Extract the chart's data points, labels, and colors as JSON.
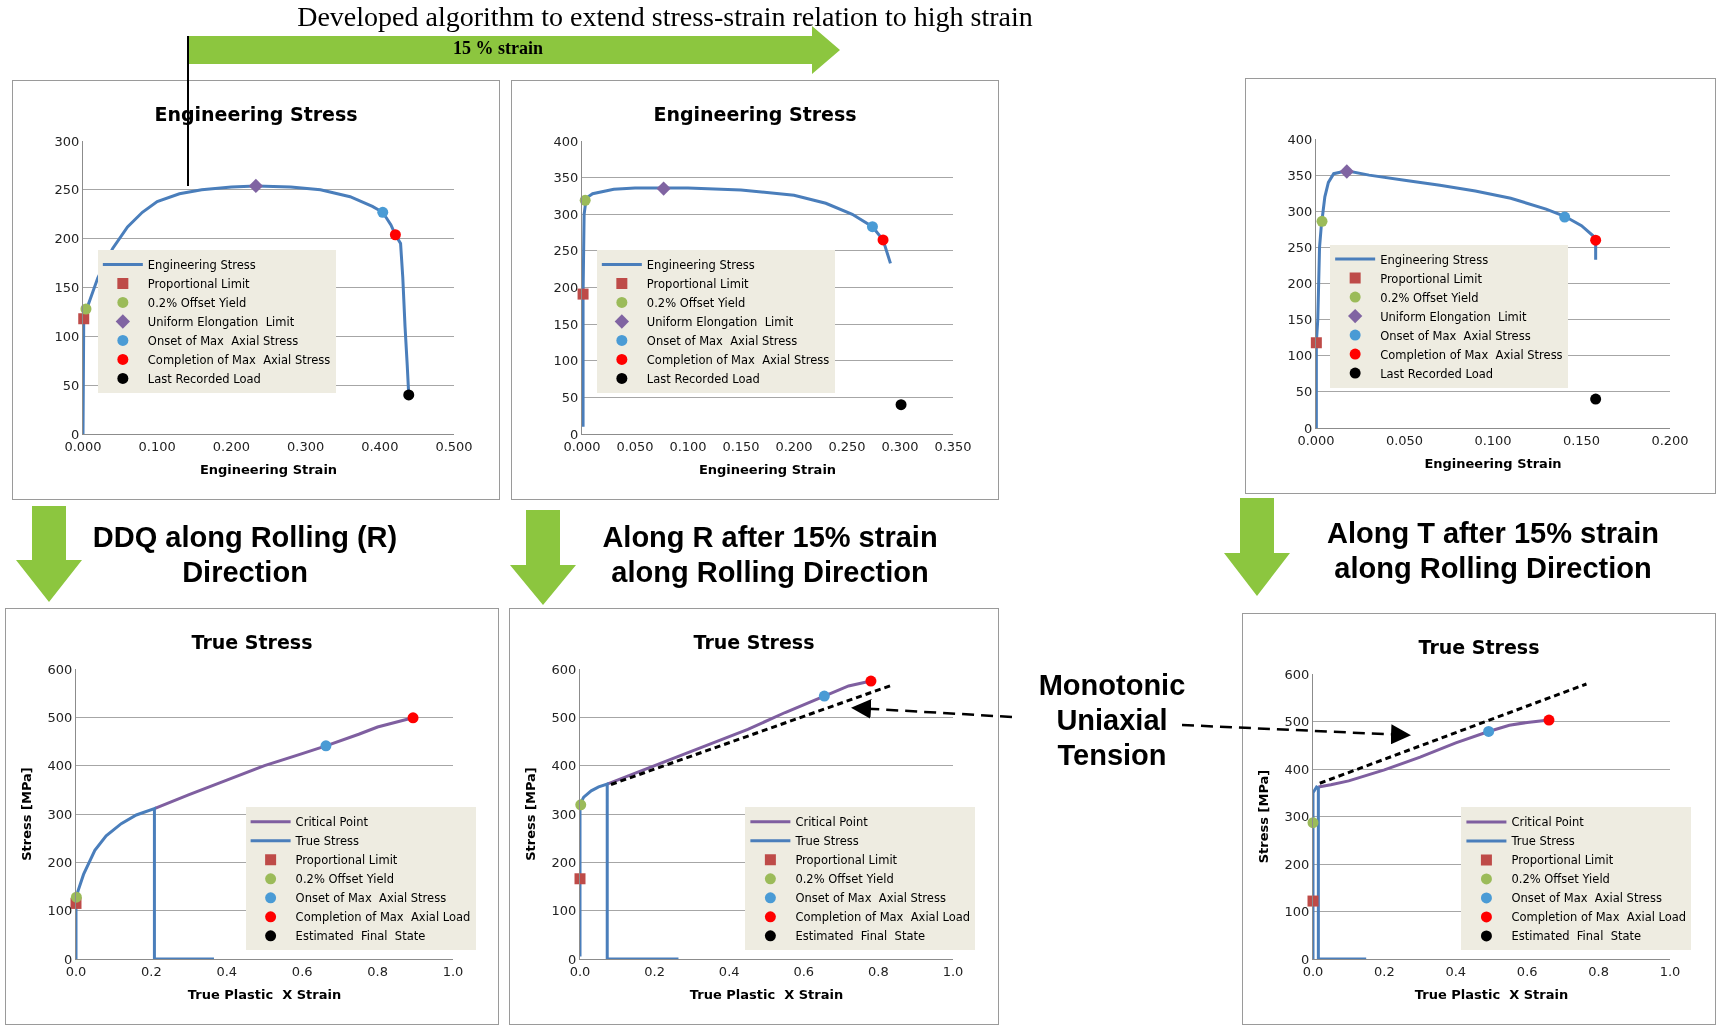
{
  "chart_data": [
    {
      "type": "line",
      "title": "Engineering Stress",
      "xlabel": "Engineering Strain",
      "grid": "y",
      "legend": "bottom",
      "annotations": [
        "Developed algorithm to extend stress-strain relation to high strain",
        "15 % strain",
        "DDQ along Rolling (R) Direction"
      ],
      "xlim": [
        0,
        0.5
      ],
      "xticks": [
        {
          "value": 0,
          "label": "0.000"
        },
        {
          "value": 0.1,
          "label": "0.100"
        },
        {
          "value": 0.2,
          "label": "0.200"
        },
        {
          "value": 0.3,
          "label": "0.300"
        },
        {
          "value": 0.4,
          "label": "0.400"
        },
        {
          "value": 0.5,
          "label": "0.500"
        }
      ],
      "ylim": [
        0,
        300
      ],
      "yticks": [
        0,
        50,
        100,
        150,
        200,
        250,
        300
      ],
      "series": [
        {
          "name": "Engineering Stress",
          "type": "line",
          "color": "#4a7ebb",
          "x": [
            0,
            0.001,
            0.005,
            0.02,
            0.04,
            0.06,
            0.08,
            0.1,
            0.13,
            0.16,
            0.2,
            0.233,
            0.28,
            0.32,
            0.36,
            0.39,
            0.404,
            0.415,
            0.421,
            0.428,
            0.431,
            0.434,
            0.437,
            0.439
          ],
          "values": [
            0,
            118,
            128,
            160,
            190,
            212,
            227,
            238,
            246,
            250,
            253,
            254,
            253,
            250,
            243,
            233,
            227,
            214,
            204,
            195,
            160,
            110,
            70,
            40
          ]
        },
        {
          "name": "Proportional Limit",
          "type": "scatter",
          "marker": "square",
          "color": "#be4b48",
          "x": [
            0.001
          ],
          "values": [
            118
          ]
        },
        {
          "name": "0.2% Offset Yield",
          "type": "scatter",
          "marker": "circle",
          "color": "#9bbb59",
          "x": [
            0.004
          ],
          "values": [
            128
          ]
        },
        {
          "name": "Uniform Elongation  Limit",
          "type": "scatter",
          "marker": "diamond",
          "color": "#8064a2",
          "x": [
            0.233
          ],
          "values": [
            254
          ]
        },
        {
          "name": "Onset of Max  Axial Stress",
          "type": "scatter",
          "marker": "circle",
          "color": "#4a9bd5",
          "x": [
            0.404
          ],
          "values": [
            227
          ]
        },
        {
          "name": "Completion of Max  Axial Stress",
          "type": "scatter",
          "marker": "circle",
          "color": "#ff0000",
          "x": [
            0.421
          ],
          "values": [
            204
          ]
        },
        {
          "name": "Last Recorded Load",
          "type": "scatter",
          "marker": "circle",
          "color": "#000000",
          "x": [
            0.439
          ],
          "values": [
            40
          ]
        }
      ]
    },
    {
      "type": "line",
      "title": "Engineering Stress",
      "xlabel": "Engineering Strain",
      "grid": "y",
      "legend": "bottom",
      "annotations": [
        "Along R after 15% strain along Rolling Direction"
      ],
      "xlim": [
        0,
        0.35
      ],
      "xticks": [
        {
          "value": 0,
          "label": "0.000"
        },
        {
          "value": 0.05,
          "label": "0.050"
        },
        {
          "value": 0.1,
          "label": "0.100"
        },
        {
          "value": 0.15,
          "label": "0.150"
        },
        {
          "value": 0.2,
          "label": "0.200"
        },
        {
          "value": 0.25,
          "label": "0.250"
        },
        {
          "value": 0.3,
          "label": "0.300"
        },
        {
          "value": 0.35,
          "label": "0.350"
        }
      ],
      "ylim": [
        0,
        400
      ],
      "yticks": [
        0,
        50,
        100,
        150,
        200,
        250,
        300,
        350,
        400
      ],
      "series": [
        {
          "name": "Engineering Stress",
          "type": "line",
          "color": "#4a7ebb",
          "x": [
            0.001,
            0.001,
            0.002,
            0.004,
            0.01,
            0.03,
            0.05,
            0.077,
            0.1,
            0.15,
            0.2,
            0.23,
            0.255,
            0.274,
            0.284,
            0.291
          ],
          "values": [
            10,
            190,
            300,
            322,
            328,
            334,
            336,
            336,
            336,
            333,
            326,
            315,
            300,
            283,
            265,
            233
          ]
        },
        {
          "name": "Proportional Limit",
          "type": "scatter",
          "marker": "square",
          "color": "#be4b48",
          "x": [
            0.001
          ],
          "values": [
            191
          ]
        },
        {
          "name": "0.2% Offset Yield",
          "type": "scatter",
          "marker": "circle",
          "color": "#9bbb59",
          "x": [
            0.003
          ],
          "values": [
            319
          ]
        },
        {
          "name": "Uniform Elongation  Limit",
          "type": "scatter",
          "marker": "diamond",
          "color": "#8064a2",
          "x": [
            0.077
          ],
          "values": [
            335
          ]
        },
        {
          "name": "Onset of Max  Axial Stress",
          "type": "scatter",
          "marker": "circle",
          "color": "#4a9bd5",
          "x": [
            0.274
          ],
          "values": [
            283
          ]
        },
        {
          "name": "Completion of Max  Axial Stress",
          "type": "scatter",
          "marker": "circle",
          "color": "#ff0000",
          "x": [
            0.284
          ],
          "values": [
            265
          ]
        },
        {
          "name": "Last Recorded Load",
          "type": "scatter",
          "marker": "circle",
          "color": "#000000",
          "x": [
            0.301
          ],
          "values": [
            40
          ]
        }
      ]
    },
    {
      "type": "line",
      "xlabel": "Engineering Strain",
      "grid": "y",
      "legend": "bottom",
      "annotations": [
        "Along T after 15% strain along Rolling Direction"
      ],
      "xlim": [
        0,
        0.2
      ],
      "xticks": [
        {
          "value": 0,
          "label": "0.000"
        },
        {
          "value": 0.05,
          "label": "0.050"
        },
        {
          "value": 0.1,
          "label": "0.100"
        },
        {
          "value": 0.15,
          "label": "0.150"
        },
        {
          "value": 0.2,
          "label": "0.200"
        }
      ],
      "ylim": [
        0,
        400
      ],
      "yticks": [
        0,
        50,
        100,
        150,
        200,
        250,
        300,
        350,
        400
      ],
      "series": [
        {
          "name": "Engineering Stress",
          "type": "line",
          "color": "#4a7ebb",
          "x": [
            0.0002,
            0.0002,
            0.001,
            0.0015,
            0.002,
            0.003,
            0.004,
            0.005,
            0.007,
            0.01,
            0.0174,
            0.03,
            0.05,
            0.07,
            0.09,
            0.11,
            0.13,
            0.1405,
            0.15,
            0.157,
            0.158,
            0.158
          ],
          "values": [
            0,
            118,
            150,
            200,
            250,
            280,
            300,
            320,
            340,
            352,
            356,
            350,
            343,
            336,
            328,
            318,
            303,
            293,
            280,
            265,
            260,
            233
          ]
        },
        {
          "name": "Proportional Limit",
          "type": "scatter",
          "marker": "square",
          "color": "#be4b48",
          "x": [
            0.0002
          ],
          "values": [
            118
          ]
        },
        {
          "name": "0.2% Offset Yield",
          "type": "scatter",
          "marker": "circle",
          "color": "#9bbb59",
          "x": [
            0.0034
          ],
          "values": [
            286
          ]
        },
        {
          "name": "Uniform Elongation  Limit",
          "type": "scatter",
          "marker": "diamond",
          "color": "#8064a2",
          "x": [
            0.0174
          ],
          "values": [
            355
          ]
        },
        {
          "name": "Onset of Max  Axial Stress",
          "type": "scatter",
          "marker": "circle",
          "color": "#4a9bd5",
          "x": [
            0.1405
          ],
          "values": [
            292
          ]
        },
        {
          "name": "Completion of Max  Axial Stress",
          "type": "scatter",
          "marker": "circle",
          "color": "#ff0000",
          "x": [
            0.158
          ],
          "values": [
            260
          ]
        },
        {
          "name": "Last Recorded Load",
          "type": "scatter",
          "marker": "circle",
          "color": "#000000",
          "x": [
            0.158
          ],
          "values": [
            40
          ]
        }
      ]
    },
    {
      "type": "line",
      "title": "True Stress",
      "xlabel": "True Plastic  X Strain",
      "ylabel": "Stress [MPa]",
      "grid": "y",
      "legend": "bottom right",
      "xlim": [
        0,
        1
      ],
      "xticks": [
        {
          "value": 0,
          "label": "0.0"
        },
        {
          "value": 0.2,
          "label": "0.2"
        },
        {
          "value": 0.4,
          "label": "0.4"
        },
        {
          "value": 0.6,
          "label": "0.6"
        },
        {
          "value": 0.8,
          "label": "0.8"
        },
        {
          "value": 1,
          "label": "1.0"
        }
      ],
      "ylim": [
        0,
        600
      ],
      "yticks": [
        0,
        100,
        200,
        300,
        400,
        500,
        600
      ],
      "series": [
        {
          "name": "Critical Point",
          "type": "line",
          "color": "#7f5fa0",
          "x": [
            0.208,
            0.3,
            0.4,
            0.5,
            0.6,
            0.663,
            0.75,
            0.8,
            0.894
          ],
          "values": [
            311,
            340,
            370,
            400,
            425,
            441,
            465,
            480,
            499
          ]
        },
        {
          "name": "True Stress",
          "type": "line",
          "color": "#4a7ebb",
          "x": [
            0,
            0,
            0.005,
            0.02,
            0.05,
            0.08,
            0.12,
            0.16,
            0.208,
            0.208,
            0.366
          ],
          "values": [
            0,
            115,
            140,
            175,
            225,
            255,
            280,
            298,
            311,
            0,
            0
          ]
        },
        {
          "name": "Proportional Limit",
          "type": "scatter",
          "marker": "square",
          "color": "#be4b48",
          "x": [
            0
          ],
          "values": [
            115
          ]
        },
        {
          "name": "0.2% Offset Yield",
          "type": "scatter",
          "marker": "circle",
          "color": "#9bbb59",
          "x": [
            0.001
          ],
          "values": [
            128
          ]
        },
        {
          "name": "Onset of Max  Axial Stress",
          "type": "scatter",
          "marker": "circle",
          "color": "#4a9bd5",
          "x": [
            0.663
          ],
          "values": [
            441
          ]
        },
        {
          "name": "Completion of Max  Axial Load",
          "type": "scatter",
          "marker": "circle",
          "color": "#ff0000",
          "x": [
            0.894
          ],
          "values": [
            499
          ]
        },
        {
          "name": "Estimated  Final  State",
          "type": "scatter",
          "marker": "circle",
          "color": "#000000",
          "x": [
            null
          ],
          "values": [
            null
          ]
        }
      ]
    },
    {
      "type": "line",
      "title": "True Stress",
      "xlabel": "True Plastic  X Strain",
      "ylabel": "Stress [MPa]",
      "grid": "y",
      "legend": "bottom right",
      "annotations": [
        "Monotonic Uniaxial Tension"
      ],
      "xlim": [
        0,
        1
      ],
      "xticks": [
        {
          "value": 0,
          "label": "0.0"
        },
        {
          "value": 0.2,
          "label": "0.2"
        },
        {
          "value": 0.4,
          "label": "0.4"
        },
        {
          "value": 0.6,
          "label": "0.6"
        },
        {
          "value": 0.8,
          "label": "0.8"
        },
        {
          "value": 1,
          "label": "1.0"
        }
      ],
      "ylim": [
        0,
        600
      ],
      "yticks": [
        0,
        100,
        200,
        300,
        400,
        500,
        600
      ],
      "series": [
        {
          "name": "Critical Point",
          "type": "line",
          "color": "#7f5fa0",
          "x": [
            0.073,
            0.15,
            0.25,
            0.35,
            0.45,
            0.55,
            0.655,
            0.72,
            0.78
          ],
          "values": [
            362,
            385,
            415,
            445,
            475,
            510,
            544,
            565,
            575
          ]
        },
        {
          "name": "True Stress",
          "type": "line",
          "color": "#4a7ebb",
          "x": [
            0,
            0,
            0.01,
            0.03,
            0.05,
            0.073,
            0.073,
            0.264
          ],
          "values": [
            5,
            320,
            335,
            348,
            356,
            362,
            0,
            0
          ]
        },
        {
          "name": "Proportional Limit",
          "type": "scatter",
          "marker": "square",
          "color": "#be4b48",
          "x": [
            0
          ],
          "values": [
            166
          ]
        },
        {
          "name": "0.2% Offset Yield",
          "type": "scatter",
          "marker": "circle",
          "color": "#9bbb59",
          "x": [
            0.002
          ],
          "values": [
            319
          ]
        },
        {
          "name": "Onset of Max  Axial Stress",
          "type": "scatter",
          "marker": "circle",
          "color": "#4a9bd5",
          "x": [
            0.655
          ],
          "values": [
            544
          ]
        },
        {
          "name": "Completion of Max  Axial Load",
          "type": "scatter",
          "marker": "circle",
          "color": "#ff0000",
          "x": [
            0.78
          ],
          "values": [
            575
          ]
        },
        {
          "name": "Estimated  Final  State",
          "type": "scatter",
          "marker": "circle",
          "color": "#000000",
          "x": [
            null
          ],
          "values": [
            null
          ]
        },
        {
          "type": "line",
          "line_style": "dashed",
          "color": "#000000",
          "x": [
            0.083,
            0.834
          ],
          "values": [
            361,
            566
          ]
        }
      ]
    },
    {
      "type": "line",
      "title": "True Stress",
      "xlabel": "True Plastic  X Strain",
      "ylabel": "Stress [MPa]",
      "grid": "y",
      "legend": "bottom right",
      "xlim": [
        0,
        1
      ],
      "xticks": [
        {
          "value": 0,
          "label": "0.0"
        },
        {
          "value": 0.2,
          "label": "0.2"
        },
        {
          "value": 0.4,
          "label": "0.4"
        },
        {
          "value": 0.6,
          "label": "0.6"
        },
        {
          "value": 0.8,
          "label": "0.8"
        },
        {
          "value": 1,
          "label": "1.0"
        }
      ],
      "ylim": [
        0,
        600
      ],
      "yticks": [
        0,
        100,
        200,
        300,
        400,
        500,
        600
      ],
      "series": [
        {
          "name": "Critical Point",
          "type": "line",
          "color": "#7f5fa0",
          "x": [
            0.015,
            0.05,
            0.1,
            0.2,
            0.3,
            0.4,
            0.492,
            0.55,
            0.6,
            0.661
          ],
          "values": [
            362,
            367,
            375,
            398,
            425,
            455,
            479,
            492,
            498,
            503
          ]
        },
        {
          "name": "True Stress",
          "type": "line",
          "color": "#4a7ebb",
          "x": [
            0,
            0,
            0.01,
            0.015,
            0.015,
            0.149
          ],
          "values": [
            0,
            350,
            362,
            360,
            0,
            0
          ]
        },
        {
          "name": "Proportional Limit",
          "type": "scatter",
          "marker": "square",
          "color": "#be4b48",
          "x": [
            0
          ],
          "values": [
            122
          ]
        },
        {
          "name": "0.2% Offset Yield",
          "type": "scatter",
          "marker": "circle",
          "color": "#9bbb59",
          "x": [
            0
          ],
          "values": [
            287
          ]
        },
        {
          "name": "Onset of Max  Axial Stress",
          "type": "scatter",
          "marker": "circle",
          "color": "#4a9bd5",
          "x": [
            0.492
          ],
          "values": [
            479
          ]
        },
        {
          "name": "Completion of Max  Axial Load",
          "type": "scatter",
          "marker": "circle",
          "color": "#ff0000",
          "x": [
            0.661
          ],
          "values": [
            503
          ]
        },
        {
          "name": "Estimated  Final  State",
          "type": "scatter",
          "marker": "circle",
          "color": "#000000",
          "x": [
            null
          ],
          "values": [
            null
          ]
        },
        {
          "type": "line",
          "line_style": "dashed",
          "color": "#000000",
          "x": [
            0.019,
            0.766
          ],
          "values": [
            370,
            579
          ]
        }
      ]
    }
  ]
}
